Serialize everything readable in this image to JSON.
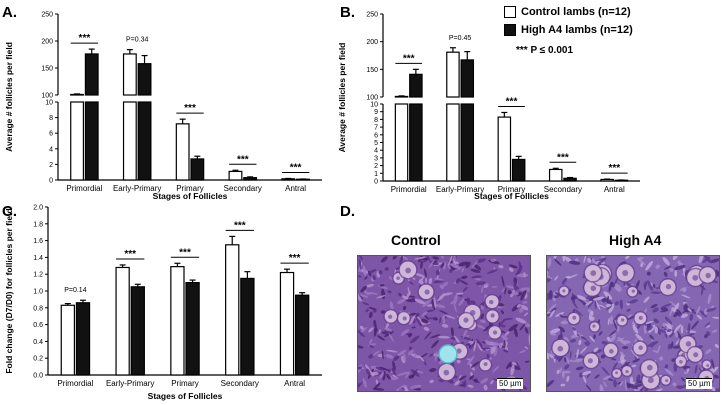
{
  "panel_labels": {
    "a": "A.",
    "b": "B.",
    "c": "C.",
    "d": "D."
  },
  "legend": {
    "control": "Control lambs (n=12)",
    "high": "High A4 lambs (n=12)",
    "significance": "*** P ≤ 0.001"
  },
  "colors": {
    "control": "#ffffff",
    "high": "#111111",
    "outline": "#000000"
  },
  "images": {
    "control_title": "Control",
    "high_title": "High A4",
    "scale_label": "50 µm"
  },
  "chart_data": [
    {
      "type": "bar",
      "panel": "A.",
      "xlabel": "Stages of Follicles",
      "ylabel": "Average # follicles per field",
      "categories": [
        "Primordial",
        "Early-Primary",
        "Primary",
        "Secondary",
        "Antral"
      ],
      "series": [
        {
          "name": "Control lambs (n=12)",
          "values": [
            101,
            176,
            7.2,
            1.1,
            0.15
          ],
          "errors": [
            1,
            8,
            0.6,
            0.15,
            0.05
          ]
        },
        {
          "name": "High A4 lambs (n=12)",
          "values": [
            176,
            158,
            2.7,
            0.3,
            0.1
          ],
          "errors": [
            9,
            15,
            0.35,
            0.1,
            0.03
          ]
        }
      ],
      "y_axis_break": {
        "lower_range": [
          0,
          10
        ],
        "upper_range": [
          100,
          250
        ]
      },
      "lower_ticks": [
        0,
        2,
        4,
        6,
        8,
        10
      ],
      "upper_ticks": [
        100,
        150,
        200,
        250
      ],
      "annotations": [
        "***",
        "P=0.34",
        "***",
        "***",
        "***"
      ]
    },
    {
      "type": "bar",
      "panel": "B.",
      "xlabel": "Stages of Follicles",
      "ylabel": "Average # follicles per field",
      "categories": [
        "Primordial",
        "Early-Primary",
        "Primary",
        "Secondary",
        "Antral"
      ],
      "series": [
        {
          "name": "Control lambs (n=12)",
          "values": [
            101,
            181,
            8.3,
            1.5,
            0.2
          ],
          "errors": [
            1,
            8,
            0.6,
            0.15,
            0.05
          ]
        },
        {
          "name": "High A4 lambs (n=12)",
          "values": [
            141,
            167,
            2.8,
            0.35,
            0.1
          ],
          "errors": [
            9,
            15,
            0.4,
            0.1,
            0.03
          ]
        }
      ],
      "y_axis_break": {
        "lower_range": [
          0,
          10
        ],
        "upper_range": [
          100,
          250
        ]
      },
      "lower_ticks": [
        0,
        1,
        2,
        3,
        4,
        5,
        6,
        7,
        8,
        9,
        10
      ],
      "upper_ticks": [
        100,
        150,
        200,
        250
      ],
      "annotations": [
        "***",
        "P=0.45",
        "***",
        "***",
        "***"
      ]
    },
    {
      "type": "bar",
      "panel": "C.",
      "xlabel": "Stages of Follicles",
      "ylabel": "Fold change (D7/D0) for follicles per field",
      "categories": [
        "Primordial",
        "Early-Primary",
        "Primary",
        "Secondary",
        "Antral"
      ],
      "series": [
        {
          "name": "Control lambs (n=12)",
          "values": [
            0.83,
            1.28,
            1.29,
            1.55,
            1.22
          ],
          "errors": [
            0.02,
            0.03,
            0.04,
            0.1,
            0.04
          ]
        },
        {
          "name": "High A4 lambs (n=12)",
          "values": [
            0.86,
            1.05,
            1.1,
            1.15,
            0.95
          ],
          "errors": [
            0.03,
            0.03,
            0.03,
            0.08,
            0.03
          ]
        }
      ],
      "ylim": [
        0.0,
        2.0
      ],
      "ticks": [
        0.0,
        0.2,
        0.4,
        0.6,
        0.8,
        1.0,
        1.2,
        1.4,
        1.6,
        1.8,
        2.0
      ],
      "annotations": [
        "P=0.14",
        "***",
        "***",
        "***",
        "***"
      ]
    }
  ]
}
